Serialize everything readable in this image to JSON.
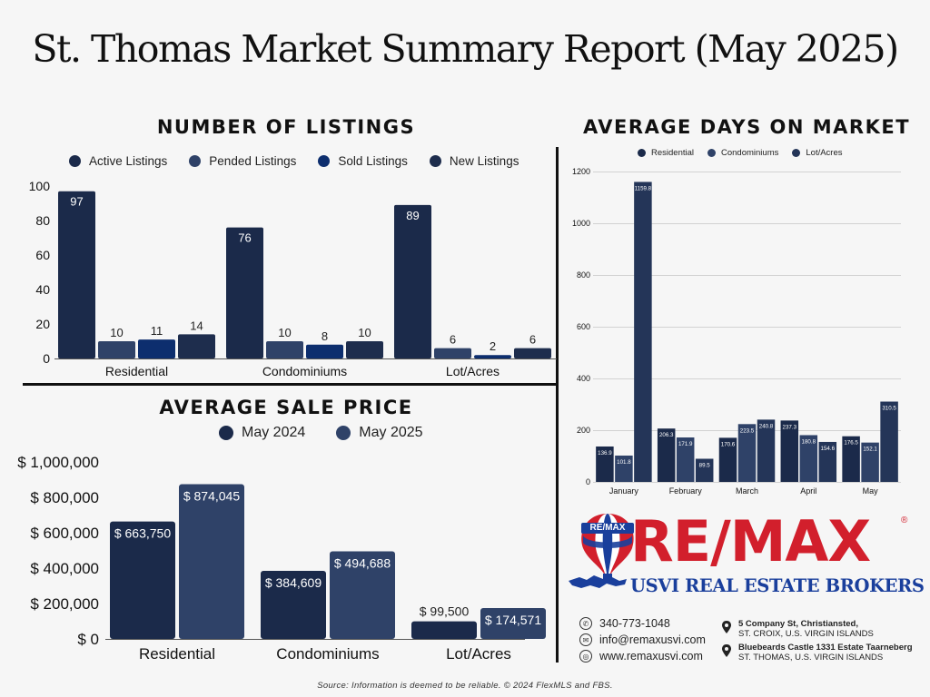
{
  "header": {
    "title": "St. Thomas Market Summary Report (May 2025)"
  },
  "colors": {
    "active": "#1b2a4a",
    "pended": "#2f4268",
    "sold": "#0d2e6e",
    "new": "#1e2d4d",
    "may2024": "#1b2a4a",
    "may2025": "#2f4268",
    "residential": "#1b2a4a",
    "condominiums": "#2f4268",
    "lot": "#243558",
    "remax_red": "#d21f2c",
    "remax_blue": "#1a3f9c"
  },
  "chart_data": [
    {
      "type": "bar",
      "title": "NUMBER OF LISTINGS",
      "categories": [
        "Residential",
        "Condominiums",
        "Lot/Acres"
      ],
      "series": [
        {
          "name": "Active Listings",
          "values": [
            97,
            76,
            89
          ]
        },
        {
          "name": "Pended Listings",
          "values": [
            10,
            10,
            6
          ]
        },
        {
          "name": "Sold Listings",
          "values": [
            11,
            8,
            2
          ]
        },
        {
          "name": "New Listings",
          "values": [
            14,
            10,
            6
          ]
        }
      ],
      "data_labels": [
        [
          "97",
          "10",
          "11",
          "14"
        ],
        [
          "76",
          "10",
          "8",
          "10"
        ],
        [
          "89",
          "6",
          "2",
          "6"
        ]
      ],
      "yticks": [
        "0",
        "20",
        "40",
        "60",
        "80",
        "100"
      ],
      "ylim": [
        0,
        100
      ],
      "legend": "top",
      "grid": false
    },
    {
      "type": "bar",
      "title": "AVERAGE SALE PRICE",
      "categories": [
        "Residential",
        "Condominiums",
        "Lot/Acres"
      ],
      "series": [
        {
          "name": "May 2024",
          "values": [
            663750,
            384609,
            99500
          ]
        },
        {
          "name": "May 2025",
          "values": [
            874045,
            494688,
            174571
          ]
        }
      ],
      "data_labels": [
        [
          "$ 663,750",
          "$ 874,045"
        ],
        [
          "$ 384,609",
          "$ 494,688"
        ],
        [
          "$ 99,500",
          "$ 174,571"
        ]
      ],
      "yticks": [
        "$ 0",
        "$ 200,000",
        "$ 400,000",
        "$ 600,000",
        "$ 800,000",
        "$ 1,000,000"
      ],
      "ylim": [
        0,
        1000000
      ],
      "legend": "top",
      "grid": false
    },
    {
      "type": "bar",
      "title": "AVERAGE DAYS ON MARKET",
      "categories": [
        "January",
        "February",
        "March",
        "April",
        "May"
      ],
      "series": [
        {
          "name": "Residential",
          "values": [
            136.9,
            206.3,
            170.6,
            237.3,
            176.5
          ]
        },
        {
          "name": "Condominiums",
          "values": [
            101.8,
            171.9,
            223.5,
            180.8,
            152.1
          ]
        },
        {
          "name": "Lot/Acres",
          "values": [
            1159.8,
            89.5,
            240.8,
            154.6,
            310.5
          ]
        }
      ],
      "data_labels": [
        [
          "136.9",
          "101.8",
          "1159.8"
        ],
        [
          "206.3",
          "171.9",
          "89.5"
        ],
        [
          "170.6",
          "223.5",
          "240.8"
        ],
        [
          "237.3",
          "180.8",
          "154.6"
        ],
        [
          "176.5",
          "152.1",
          "310.5"
        ]
      ],
      "yticks": [
        "0",
        "200",
        "400",
        "600",
        "800",
        "1000",
        "1200"
      ],
      "ylim": [
        0,
        1200
      ],
      "legend": "top",
      "grid": true
    }
  ],
  "logo": {
    "brand": "RE/MAX",
    "balloon_text": "RE/MAX",
    "subtitle": "USVI REAL ESTATE BROKERS",
    "registered": "®"
  },
  "contact": {
    "phone": "340-773-1048",
    "email": "info@remaxusvi.com",
    "website": "www.remaxusvi.com",
    "address1_line1": "5 Company St, Christiansted,",
    "address1_line2": "ST. CROIX, U.S. VIRGIN ISLANDS",
    "address2_line1": "Bluebeards Castle 1331 Estate Taarneberg",
    "address2_line2": "ST. THOMAS, U.S. VIRGIN ISLANDS"
  },
  "footer": {
    "source": "Source: Information is deemed to be reliable. © 2024 FlexMLS and FBS."
  }
}
